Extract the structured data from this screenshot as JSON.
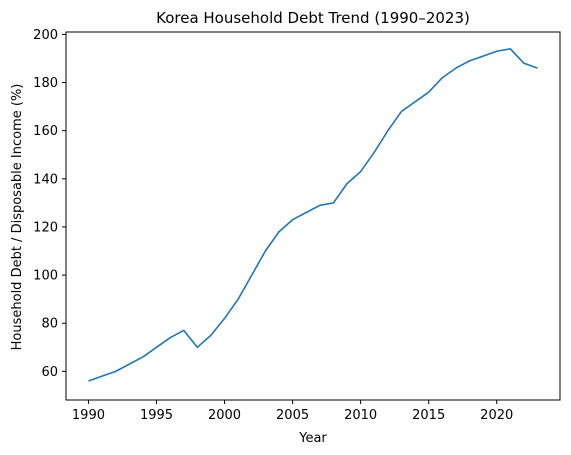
{
  "colors": {
    "series": "#1f77b4",
    "axis": "#000000",
    "background": "#ffffff"
  },
  "chart_data": {
    "type": "line",
    "title": "Korea Household Debt Trend (1990–2023)",
    "xlabel": "Year",
    "ylabel": "Household Debt / Disposable Income (%)",
    "xlim": [
      1988.35,
      2024.65
    ],
    "ylim": [
      48.1,
      201.0
    ],
    "xticks": [
      1990,
      1995,
      2000,
      2005,
      2010,
      2015,
      2020
    ],
    "yticks": [
      60,
      80,
      100,
      120,
      140,
      160,
      180,
      200
    ],
    "grid": false,
    "series": [
      {
        "x": [
          1990,
          1991,
          1992,
          1993,
          1994,
          1995,
          1996,
          1997,
          1998,
          1999,
          2000,
          2001,
          2002,
          2003,
          2004,
          2005,
          2006,
          2007,
          2008,
          2009,
          2010,
          2011,
          2012,
          2013,
          2014,
          2015,
          2016,
          2017,
          2018,
          2019,
          2020,
          2021,
          2022,
          2023
        ],
        "y": [
          56,
          58,
          60,
          63,
          66,
          70,
          74,
          77,
          70,
          75,
          82,
          90,
          100,
          110,
          118,
          123,
          126,
          129,
          130,
          138,
          143,
          151,
          160,
          168,
          172,
          176,
          182,
          186,
          189,
          191,
          193,
          194,
          188,
          186
        ]
      }
    ]
  }
}
